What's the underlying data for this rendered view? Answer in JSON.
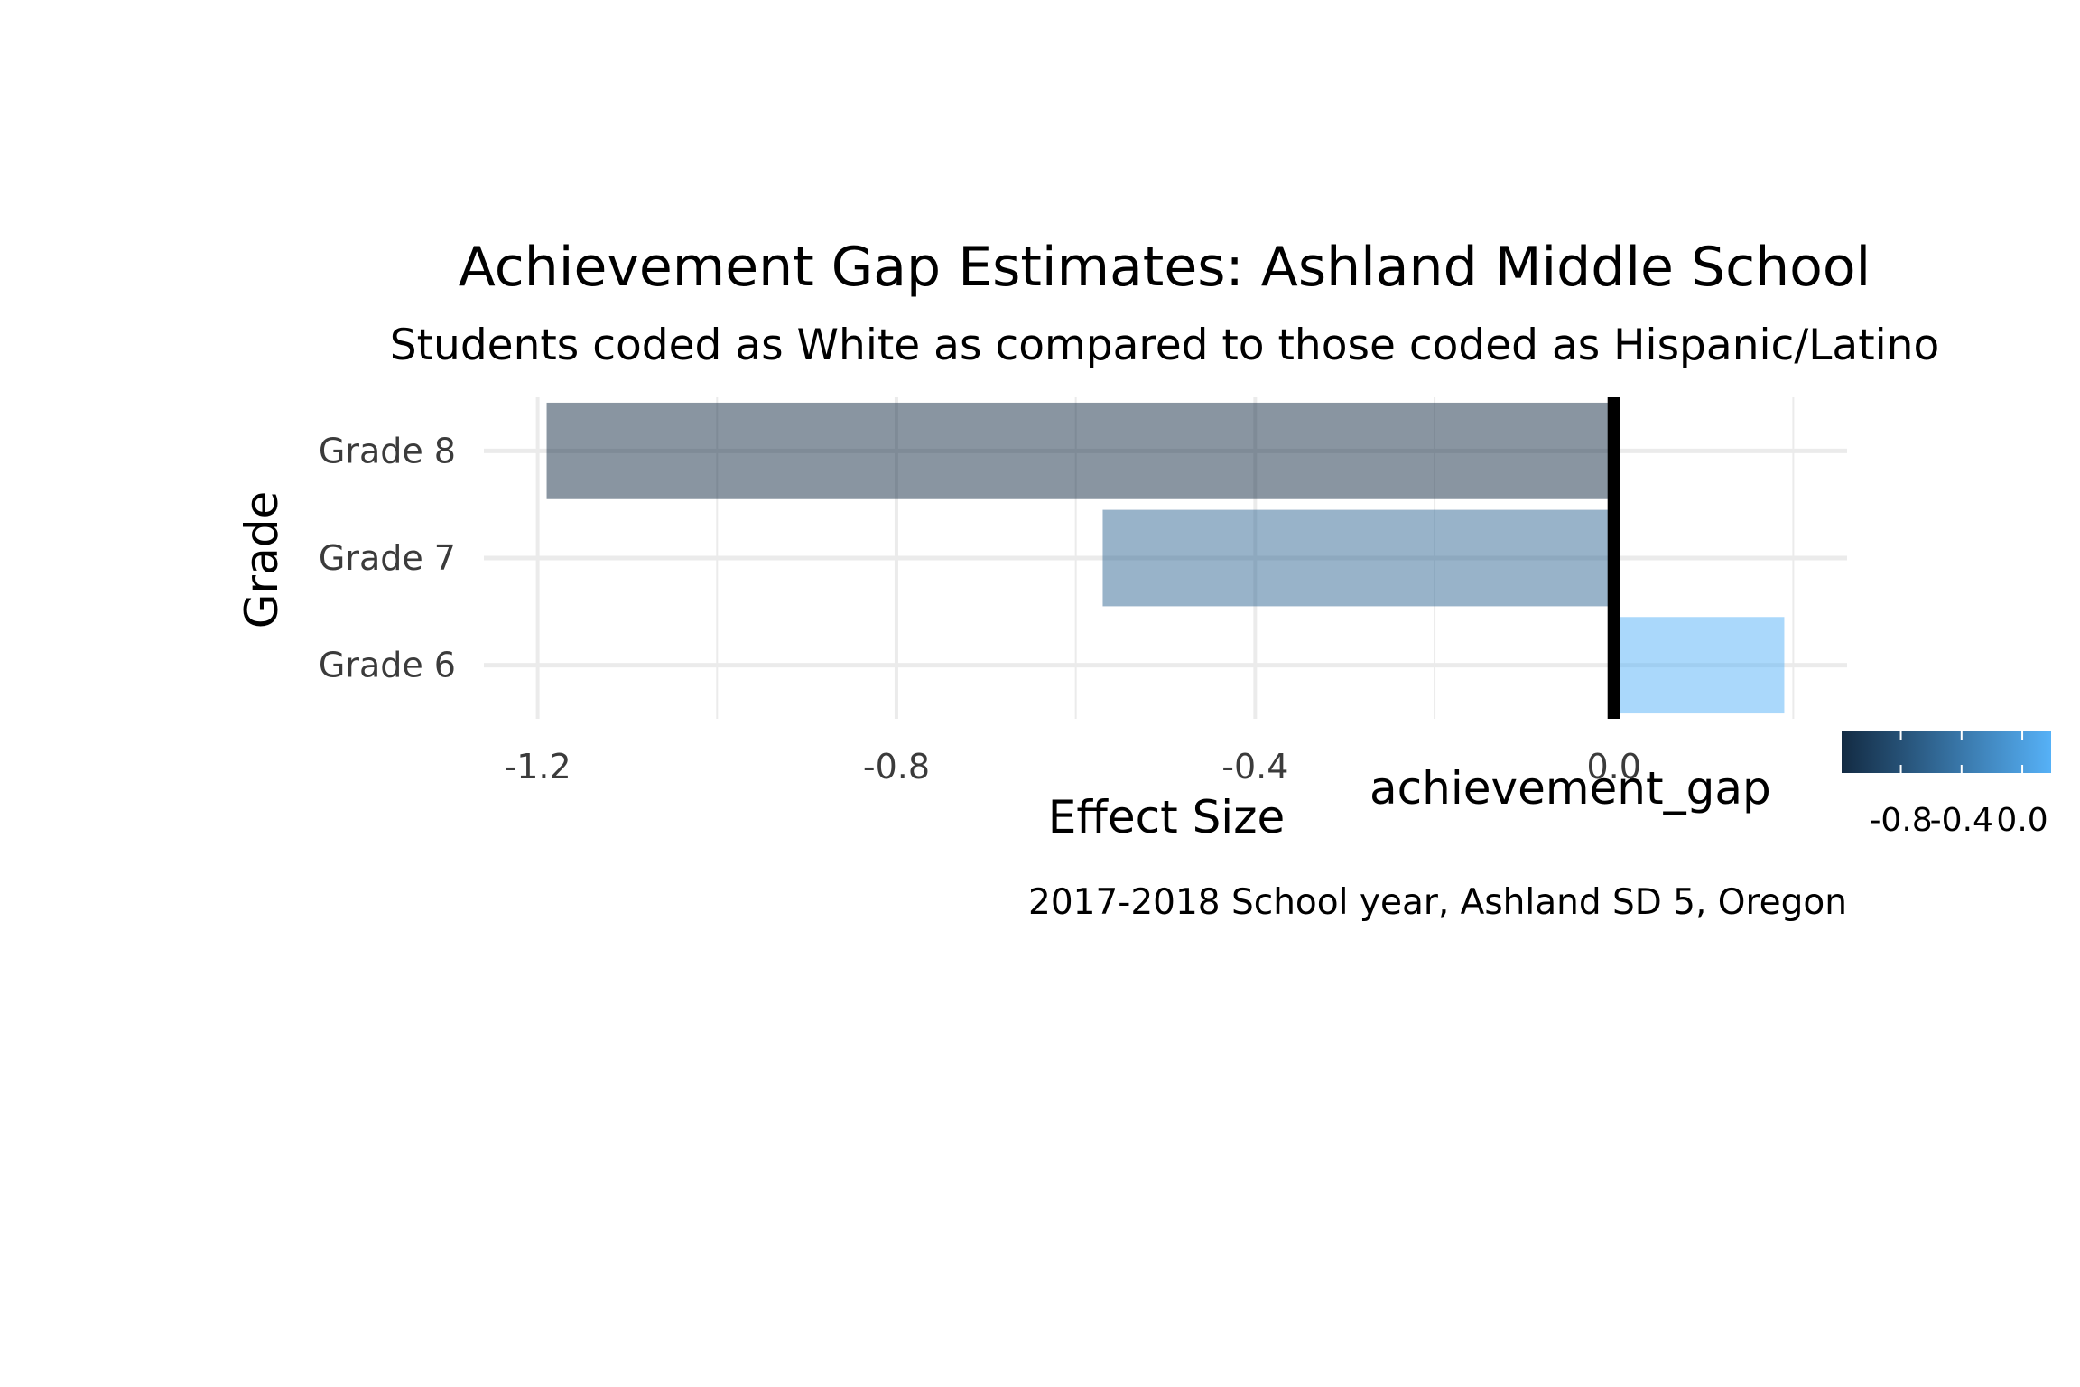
{
  "chart_data": {
    "type": "bar",
    "orientation": "horizontal",
    "title": "Achievement Gap Estimates: Ashland Middle School",
    "subtitle": "Students coded as White as compared to those coded as Hispanic/Latino",
    "caption": "2017-2018 School year, Ashland SD 5, Oregon",
    "xlabel": "Effect Size",
    "ylabel": "Grade",
    "categories": [
      "Grade 8",
      "Grade 7",
      "Grade 6"
    ],
    "values": [
      -1.19,
      -0.57,
      0.19
    ],
    "xlim": [
      -1.26,
      0.26
    ],
    "x_ticks": [
      -1.2,
      -0.8,
      -0.4,
      0.0
    ],
    "x_tick_labels": [
      "-1.2",
      "-0.8",
      "-0.4",
      "0.0"
    ],
    "reference_line": 0,
    "grid": true,
    "legend": {
      "title": "achievement_gap",
      "placement": "bottom-right",
      "ticks": [
        -0.8,
        -0.4,
        0.0
      ],
      "tick_labels": [
        "-0.8",
        "-0.4",
        "0.0"
      ],
      "range": [
        -1.19,
        0.19
      ],
      "color_low": "#132B43",
      "color_high": "#56B1F7"
    },
    "bar_opacity": 0.5
  }
}
